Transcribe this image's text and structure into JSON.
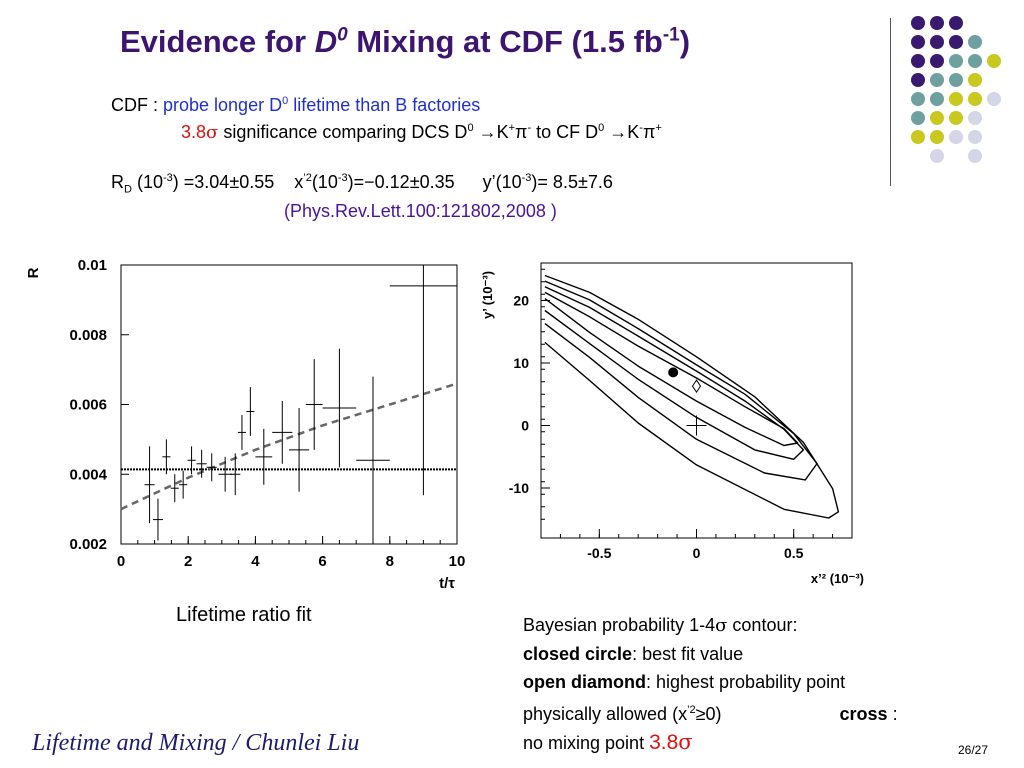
{
  "title": {
    "prefix": "Evidence for ",
    "d": "D",
    "d_sup": "0",
    "middle": " Mixing at CDF (1.5 fb",
    "exp": "-1",
    "end": ")"
  },
  "line1": {
    "label": "CDF : ",
    "text": "probe longer D",
    "sup": "0",
    "tail": " lifetime than B factories"
  },
  "line2": {
    "sig": "3.8",
    "sigma": "σ",
    "text1": " significance comparing DCS D",
    "sup1": "0",
    "arrow1": " →K",
    "sup2": "+",
    "pi1": "π",
    "sup3": "-",
    "text2": " to CF D",
    "sup4": "0",
    "arrow2": " →K",
    "sup5": "-",
    "pi2": "π",
    "sup6": "+"
  },
  "line3": {
    "r": "R",
    "rsub": "D",
    "a1": " (10",
    "a1sup": "-3",
    "a2": ") =3.04",
    "pm1": "±",
    "a3": "0.55",
    "x": "x",
    "xsup": "’2",
    "b1": "(10",
    "b1sup": "-3",
    "b2": ")=",
    "minus": "−",
    "b3": "0.12",
    "pm2": "±",
    "b4": "0.35",
    "y": "y’(10",
    "ysup": "-3",
    "c1": ")= 8.5",
    "pm3": "±",
    "c2": "7.6"
  },
  "reference": "(Phys.Rev.Lett.100:121802,2008 )",
  "left_plot_caption": "Lifetime  ratio fit",
  "legend": {
    "l1a": "Bayesian probability 1-4",
    "l1sigma": "σ",
    "l1b": " contour:",
    "l2bold": "closed circle",
    "l2": ": best fit  value",
    "l3bold": "open diamond",
    "l3": ":  highest probability point",
    "l4a": "physically allowed (x",
    "l4sup": "’2",
    "l4b": "≥0)",
    "l4bold": "cross",
    "l4c": " :",
    "l5": "no mixing point ",
    "l5sig": "3.8",
    "l5sigma": "σ"
  },
  "footer": "Lifetime and Mixing / Chunlei Liu",
  "page_number": "26/27",
  "colors": {
    "title": "#3d1571",
    "blue_text": "#1f2fd8",
    "red_text": "#e01010",
    "ref": "#4a12a0",
    "dot_purple": "#3a1a6e",
    "dot_teal": "#6fa0a0",
    "dot_yellow": "#c8c81e",
    "dot_lavender": "#d5d5e8"
  },
  "decoration": {
    "dot_grid": [
      [
        "purple",
        "purple",
        "purple",
        "",
        "",
        ""
      ],
      [
        "purple",
        "purple",
        "purple",
        "teal",
        "",
        ""
      ],
      [
        "purple",
        "purple",
        "teal",
        "teal",
        "yellow",
        ""
      ],
      [
        "purple",
        "teal",
        "teal",
        "yellow",
        "",
        ""
      ],
      [
        "teal",
        "teal",
        "yellow",
        "yellow",
        "lavender",
        ""
      ],
      [
        "teal",
        "yellow",
        "yellow",
        "lavender",
        "",
        ""
      ],
      [
        "yellow",
        "yellow",
        "lavender",
        "lavender",
        "",
        ""
      ],
      [
        "",
        "lavender",
        "",
        "lavender",
        "",
        ""
      ]
    ]
  },
  "chart_data": [
    {
      "type": "scatter",
      "ylabel": "R",
      "xlabel": "t/τ",
      "xlim": [
        0,
        10
      ],
      "ylim": [
        0.002,
        0.01
      ],
      "x_ticks": [
        "0",
        "2",
        "4",
        "6",
        "8",
        "10"
      ],
      "y_ticks": [
        "0.002",
        "0.004",
        "0.006",
        "0.008",
        "0.01"
      ],
      "x_tick_values": [
        0,
        2,
        4,
        6,
        8,
        10
      ],
      "y_tick_values": [
        0.002,
        0.004,
        0.006,
        0.008,
        0.01
      ],
      "points": [
        {
          "x": 0.85,
          "y": 0.0037,
          "xerr": 0.15,
          "yerr": 0.0011
        },
        {
          "x": 1.1,
          "y": 0.0027,
          "xerr": 0.15,
          "yerr": 0.0006
        },
        {
          "x": 1.35,
          "y": 0.0045,
          "xerr": 0.12,
          "yerr": 0.0005
        },
        {
          "x": 1.6,
          "y": 0.0036,
          "xerr": 0.12,
          "yerr": 0.0004
        },
        {
          "x": 1.85,
          "y": 0.0037,
          "xerr": 0.12,
          "yerr": 0.0004
        },
        {
          "x": 2.1,
          "y": 0.0044,
          "xerr": 0.12,
          "yerr": 0.0004
        },
        {
          "x": 2.4,
          "y": 0.0043,
          "xerr": 0.15,
          "yerr": 0.0004
        },
        {
          "x": 2.7,
          "y": 0.0042,
          "xerr": 0.15,
          "yerr": 0.0004
        },
        {
          "x": 3.1,
          "y": 0.004,
          "xerr": 0.2,
          "yerr": 0.0005
        },
        {
          "x": 3.4,
          "y": 0.004,
          "xerr": 0.15,
          "yerr": 0.0006
        },
        {
          "x": 3.6,
          "y": 0.0052,
          "xerr": 0.12,
          "yerr": 0.0005
        },
        {
          "x": 3.85,
          "y": 0.0058,
          "xerr": 0.12,
          "yerr": 0.0007
        },
        {
          "x": 4.25,
          "y": 0.0045,
          "xerr": 0.25,
          "yerr": 0.0008
        },
        {
          "x": 4.8,
          "y": 0.0052,
          "xerr": 0.3,
          "yerr": 0.0009
        },
        {
          "x": 5.3,
          "y": 0.0047,
          "xerr": 0.3,
          "yerr": 0.0012
        },
        {
          "x": 5.75,
          "y": 0.006,
          "xerr": 0.25,
          "yerr": 0.0013
        },
        {
          "x": 6.5,
          "y": 0.0059,
          "xerr": 0.5,
          "yerr": 0.0017
        },
        {
          "x": 7.5,
          "y": 0.0044,
          "xerr": 0.5,
          "yerr": 0.0024
        },
        {
          "x": 9.0,
          "y": 0.0094,
          "xerr": 1.0,
          "yerr": 0.006
        }
      ],
      "no_mixing_level": 0.00414,
      "mixing_fit": [
        {
          "x": 0,
          "y": 0.003
        },
        {
          "x": 2,
          "y": 0.0039
        },
        {
          "x": 4,
          "y": 0.0047
        },
        {
          "x": 6,
          "y": 0.0054
        },
        {
          "x": 8,
          "y": 0.006
        },
        {
          "x": 10,
          "y": 0.0066
        }
      ]
    },
    {
      "type": "line",
      "xlabel": "x’² (10⁻³)",
      "ylabel": "y’ (10⁻³)",
      "xlim": [
        -0.8,
        0.8
      ],
      "ylim": [
        -18,
        26
      ],
      "x_ticks": [
        "-0.5",
        "0",
        "0.5"
      ],
      "y_ticks": [
        "-10",
        "0",
        "10",
        "20"
      ],
      "x_tick_values": [
        -0.5,
        0,
        0.5
      ],
      "y_tick_values": [
        -10,
        0,
        10,
        20
      ],
      "best_fit": {
        "x": -0.12,
        "y": 8.5
      },
      "highest_probability": {
        "x": 0.0,
        "y": 6.3
      },
      "no_mixing": {
        "x": 0.0,
        "y": 0.0
      },
      "contours": [
        {
          "name": "1σ",
          "points": [
            [
              -0.78,
              21.3
            ],
            [
              -0.55,
              17.4
            ],
            [
              -0.3,
              12.7
            ],
            [
              0.0,
              7.6
            ],
            [
              0.25,
              3.0
            ],
            [
              0.45,
              -0.5
            ],
            [
              0.52,
              -2.8
            ],
            [
              0.45,
              -3.2
            ],
            [
              0.25,
              -0.3
            ],
            [
              0.0,
              3.9
            ],
            [
              -0.3,
              9.5
            ],
            [
              -0.55,
              14.9
            ],
            [
              -0.78,
              20.3
            ]
          ]
        },
        {
          "name": "2σ",
          "points": [
            [
              -0.78,
              22.2
            ],
            [
              -0.55,
              18.9
            ],
            [
              -0.3,
              14.3
            ],
            [
              0.0,
              8.7
            ],
            [
              0.25,
              3.9
            ],
            [
              0.45,
              -0.6
            ],
            [
              0.55,
              -3.9
            ],
            [
              0.5,
              -5.4
            ],
            [
              0.3,
              -3.9
            ],
            [
              0.0,
              1.3
            ],
            [
              -0.3,
              7.4
            ],
            [
              -0.55,
              13.1
            ],
            [
              -0.78,
              18.4
            ]
          ]
        },
        {
          "name": "3σ",
          "points": [
            [
              -0.78,
              23.1
            ],
            [
              -0.55,
              20.1
            ],
            [
              -0.3,
              15.5
            ],
            [
              0.0,
              9.7
            ],
            [
              0.25,
              5.0
            ],
            [
              0.5,
              -1.3
            ],
            [
              0.62,
              -6.1
            ],
            [
              0.56,
              -8.7
            ],
            [
              0.35,
              -7.6
            ],
            [
              0.0,
              -2.2
            ],
            [
              -0.3,
              4.5
            ],
            [
              -0.55,
              10.9
            ],
            [
              -0.78,
              16.3
            ]
          ]
        },
        {
          "name": "4σ",
          "points": [
            [
              -0.78,
              24.0
            ],
            [
              -0.55,
              21.3
            ],
            [
              -0.3,
              17.0
            ],
            [
              0.0,
              11.0
            ],
            [
              0.3,
              4.6
            ],
            [
              0.55,
              -2.7
            ],
            [
              0.7,
              -10.1
            ],
            [
              0.73,
              -13.8
            ],
            [
              0.68,
              -14.8
            ],
            [
              0.45,
              -13.4
            ],
            [
              0.0,
              -6.3
            ],
            [
              -0.3,
              0.4
            ],
            [
              -0.55,
              7.2
            ],
            [
              -0.78,
              13.3
            ]
          ]
        }
      ]
    }
  ]
}
